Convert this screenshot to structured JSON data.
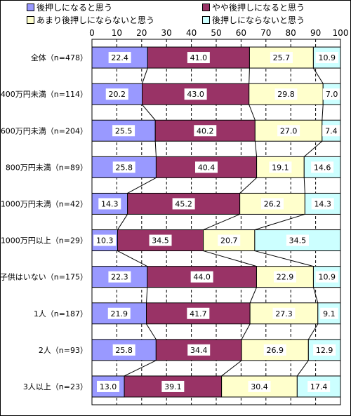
{
  "chart_data": {
    "type": "bar",
    "stacked": true,
    "orientation": "horizontal",
    "xlim": [
      0,
      100
    ],
    "xticks": [
      "0",
      "10",
      "20",
      "30",
      "40",
      "50",
      "60",
      "70",
      "80",
      "90",
      "100"
    ],
    "grid": true,
    "legend_position": "top",
    "categories": [
      "全体（n=478）",
      "400万円未満（n=114）",
      "600万円未満（n=204）",
      "800万円未満（n=89）",
      "1000万円未満（n=42）",
      "1000万円以上（n=29）",
      "子供はいない（n=175）",
      "1人（n=187）",
      "2人（n=93）",
      "3人以上（n=23）"
    ],
    "series": [
      {
        "name": "後押しになると思う",
        "color": "#9999ff",
        "values": [
          22.4,
          20.2,
          25.5,
          25.8,
          14.3,
          10.3,
          22.3,
          21.9,
          25.8,
          13.0
        ]
      },
      {
        "name": "やや後押しになると思う",
        "color": "#993366",
        "values": [
          41.0,
          43.0,
          40.2,
          40.4,
          45.2,
          34.5,
          44.0,
          41.7,
          34.4,
          39.1
        ]
      },
      {
        "name": "あまり後押しにならないと思う",
        "color": "#ffffcc",
        "values": [
          25.7,
          29.8,
          27.0,
          19.1,
          26.2,
          20.7,
          22.9,
          27.3,
          26.9,
          30.4
        ]
      },
      {
        "name": "後押しにならないと思う",
        "color": "#ccffff",
        "values": [
          10.9,
          7.0,
          7.4,
          14.6,
          14.3,
          34.5,
          10.9,
          9.1,
          12.9,
          17.4
        ]
      }
    ],
    "value_labels": [
      [
        "22.4",
        "41.0",
        "25.7",
        "10.9"
      ],
      [
        "20.2",
        "43.0",
        "29.8",
        "7.0"
      ],
      [
        "25.5",
        "40.2",
        "27.0",
        "7.4"
      ],
      [
        "25.8",
        "40.4",
        "19.1",
        "14.6"
      ],
      [
        "14.3",
        "45.2",
        "26.2",
        "14.3"
      ],
      [
        "10.3",
        "34.5",
        "20.7",
        "34.5"
      ],
      [
        "22.3",
        "44.0",
        "22.9",
        "10.9"
      ],
      [
        "21.9",
        "41.7",
        "27.3",
        "9.1"
      ],
      [
        "25.8",
        "34.4",
        "26.9",
        "12.9"
      ],
      [
        "13.0",
        "39.1",
        "30.4",
        "17.4"
      ]
    ],
    "connector_lines": true
  }
}
